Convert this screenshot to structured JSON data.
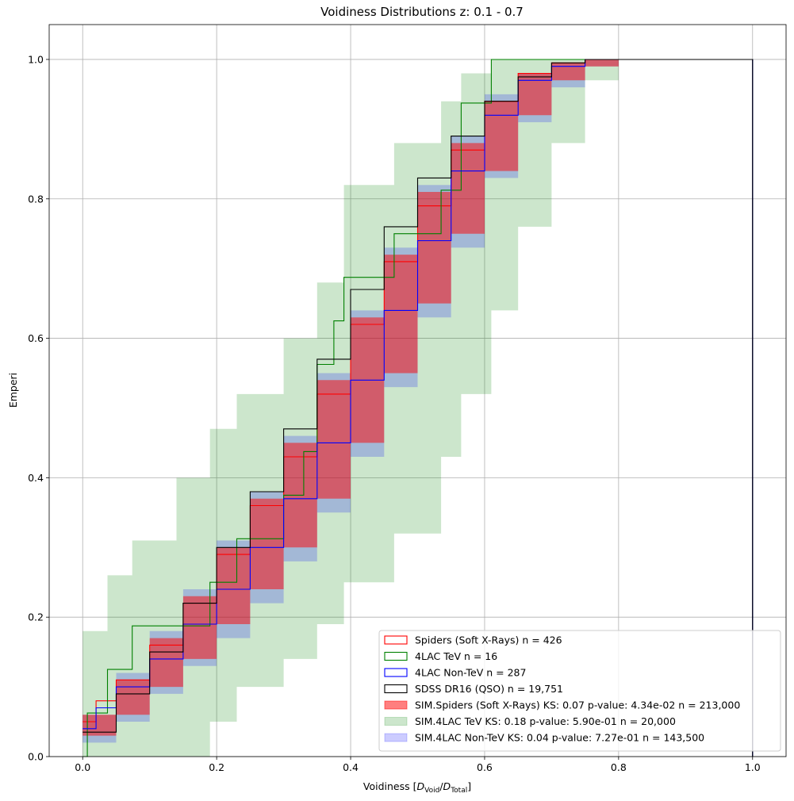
{
  "chart_data": {
    "type": "line",
    "title": "Voidiness Distributions z: 0.1 - 0.7",
    "xlabel_prefix": "Voidiness [",
    "xlabel_num": "D",
    "xlabel_num_sub": "Void",
    "xlabel_slash": "/",
    "xlabel_den": "D",
    "xlabel_den_sub": "Total",
    "xlabel_suffix": "]",
    "ylabel": "Emperi",
    "xlim": [
      -0.05,
      1.05
    ],
    "ylim": [
      0.0,
      1.05
    ],
    "x_ticks": [
      0.0,
      0.2,
      0.4,
      0.6,
      0.8,
      1.0
    ],
    "x_tick_labels": [
      "0.0",
      "0.2",
      "0.4",
      "0.6",
      "0.8",
      "1.0"
    ],
    "y_ticks": [
      0.0,
      0.2,
      0.4,
      0.6,
      0.8,
      1.0
    ],
    "y_tick_labels": [
      "0.0",
      "0.2",
      "0.4",
      "0.6",
      "0.8",
      "1.0"
    ],
    "grid": true,
    "legend_position": "lower-right",
    "legend": [
      {
        "label": "Spiders (Soft X-Rays) n = 426",
        "color": "#ff0000",
        "kind": "line"
      },
      {
        "label": "4LAC TeV n = 16",
        "color": "#008000",
        "kind": "line"
      },
      {
        "label": "4LAC Non-TeV n = 287",
        "color": "#0000ff",
        "kind": "line"
      },
      {
        "label": "SDSS DR16 (QSO) n = 19,751",
        "color": "#000000",
        "kind": "line"
      },
      {
        "label": "SIM.Spiders (Soft X-Rays) KS: 0.07 p-value: 4.34e-02 n = 213,000",
        "color": "#ff0000",
        "kind": "band",
        "alpha": 0.5
      },
      {
        "label": "SIM.4LAC TeV KS: 0.18 p-value: 5.90e-01 n = 20,000",
        "color": "#008000",
        "kind": "band",
        "alpha": 0.2
      },
      {
        "label": "SIM.4LAC Non-TeV KS: 0.04 p-value: 7.27e-01 n = 143,500",
        "color": "#0000ff",
        "kind": "band",
        "alpha": 0.2
      }
    ],
    "series": [
      {
        "name": "Spiders (Soft X-Rays) n = 426",
        "color": "#ff0000",
        "x": [
          0.0,
          0.02,
          0.05,
          0.1,
          0.15,
          0.2,
          0.25,
          0.3,
          0.35,
          0.4,
          0.45,
          0.5,
          0.55,
          0.6,
          0.65,
          0.7,
          0.75,
          0.8,
          1.0,
          1.0
        ],
        "y": [
          0.05,
          0.08,
          0.11,
          0.16,
          0.22,
          0.29,
          0.36,
          0.43,
          0.52,
          0.62,
          0.71,
          0.79,
          0.87,
          0.94,
          0.98,
          0.995,
          1.0,
          1.0,
          1.0,
          0.0
        ]
      },
      {
        "name": "4LAC TeV n = 16",
        "color": "#008000",
        "x": [
          0.0,
          0.007,
          0.037,
          0.074,
          0.19,
          0.23,
          0.3,
          0.33,
          0.35,
          0.375,
          0.39,
          0.465,
          0.535,
          0.565,
          0.61,
          1.0,
          1.0
        ],
        "y": [
          0.0,
          0.0625,
          0.125,
          0.1875,
          0.25,
          0.3125,
          0.375,
          0.4375,
          0.5625,
          0.625,
          0.6875,
          0.75,
          0.8125,
          0.9375,
          1.0,
          1.0,
          0.0
        ]
      },
      {
        "name": "4LAC Non-TeV n = 287",
        "color": "#0000ff",
        "x": [
          0.0,
          0.02,
          0.05,
          0.1,
          0.15,
          0.2,
          0.25,
          0.3,
          0.35,
          0.4,
          0.45,
          0.5,
          0.55,
          0.6,
          0.65,
          0.7,
          0.75,
          0.8,
          1.0,
          1.0
        ],
        "y": [
          0.04,
          0.07,
          0.1,
          0.14,
          0.19,
          0.24,
          0.3,
          0.37,
          0.45,
          0.54,
          0.64,
          0.74,
          0.84,
          0.92,
          0.97,
          0.99,
          1.0,
          1.0,
          1.0,
          0.0
        ]
      },
      {
        "name": "SDSS DR16 (QSO) n = 19,751",
        "color": "#000000",
        "x": [
          0.0,
          0.05,
          0.1,
          0.15,
          0.2,
          0.25,
          0.3,
          0.35,
          0.4,
          0.45,
          0.5,
          0.55,
          0.6,
          0.65,
          0.7,
          0.75,
          0.8,
          1.0,
          1.0
        ],
        "y": [
          0.035,
          0.09,
          0.15,
          0.22,
          0.3,
          0.38,
          0.47,
          0.57,
          0.67,
          0.76,
          0.83,
          0.89,
          0.94,
          0.975,
          0.995,
          1.0,
          1.0,
          1.0,
          0.0
        ]
      }
    ],
    "bands": [
      {
        "name": "SIM.4LAC TeV",
        "color": "#008000",
        "alpha": 0.2,
        "x": [
          0.0,
          0.037,
          0.074,
          0.14,
          0.19,
          0.23,
          0.3,
          0.35,
          0.39,
          0.465,
          0.535,
          0.565,
          0.61,
          0.65,
          0.7,
          0.75,
          0.8
        ],
        "upper": [
          0.18,
          0.26,
          0.31,
          0.4,
          0.47,
          0.52,
          0.6,
          0.68,
          0.82,
          0.88,
          0.94,
          0.98,
          1.0,
          1.0,
          1.0,
          1.0,
          1.0
        ],
        "lower": [
          0.0,
          0.0,
          0.0,
          0.0,
          0.05,
          0.1,
          0.14,
          0.19,
          0.25,
          0.32,
          0.43,
          0.52,
          0.64,
          0.76,
          0.88,
          0.97,
          1.0
        ]
      },
      {
        "name": "SIM.4LAC Non-TeV",
        "color": "#0000ff",
        "alpha": 0.2,
        "x": [
          0.0,
          0.05,
          0.1,
          0.15,
          0.2,
          0.25,
          0.3,
          0.35,
          0.4,
          0.45,
          0.5,
          0.55,
          0.6,
          0.65,
          0.7,
          0.75,
          0.8
        ],
        "upper": [
          0.06,
          0.12,
          0.18,
          0.24,
          0.31,
          0.38,
          0.46,
          0.55,
          0.64,
          0.73,
          0.82,
          0.89,
          0.95,
          0.98,
          0.995,
          1.0,
          1.0
        ],
        "lower": [
          0.02,
          0.05,
          0.09,
          0.13,
          0.17,
          0.22,
          0.28,
          0.35,
          0.43,
          0.53,
          0.63,
          0.73,
          0.83,
          0.91,
          0.96,
          0.99,
          1.0
        ]
      },
      {
        "name": "SIM.Spiders (Soft X-Rays)",
        "color": "#ff0000",
        "alpha": 0.5,
        "x": [
          0.0,
          0.05,
          0.1,
          0.15,
          0.2,
          0.25,
          0.3,
          0.35,
          0.4,
          0.45,
          0.5,
          0.55,
          0.6,
          0.65,
          0.7,
          0.75,
          0.8
        ],
        "upper": [
          0.06,
          0.11,
          0.17,
          0.23,
          0.3,
          0.37,
          0.45,
          0.54,
          0.63,
          0.72,
          0.81,
          0.88,
          0.94,
          0.98,
          0.995,
          1.0,
          1.0
        ],
        "lower": [
          0.03,
          0.06,
          0.1,
          0.14,
          0.19,
          0.24,
          0.3,
          0.37,
          0.45,
          0.55,
          0.65,
          0.75,
          0.84,
          0.92,
          0.97,
          0.99,
          1.0
        ]
      }
    ]
  }
}
